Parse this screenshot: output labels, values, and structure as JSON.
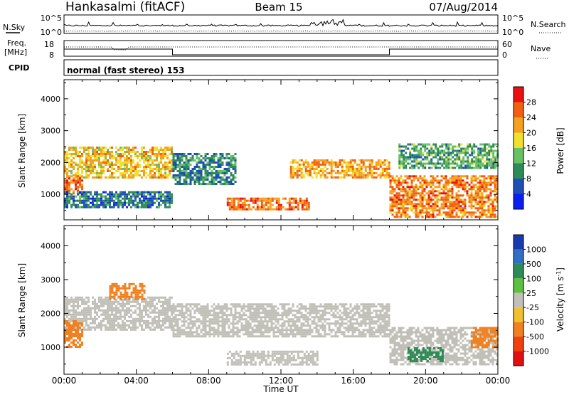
{
  "header": {
    "station": "Hankasalmi (fitACF)",
    "beam": "Beam 15",
    "date": "07/Aug/2014"
  },
  "top_panels": {
    "nsky_label": "N.Sky",
    "nsearch_label": "N.Search",
    "count_ticks": [
      "10^5",
      "10^0"
    ],
    "freq_label": "Freq.",
    "freq_unit": "[MHz]",
    "freq_ticks": [
      "18",
      "8"
    ],
    "nave_label": "Nave",
    "nave_ticks": [
      "60",
      "0"
    ],
    "cpid_label": "CPID",
    "cpid_text": "normal (fast stereo) 153"
  },
  "axes": {
    "x_ticks": [
      "00:00",
      "04:00",
      "08:00",
      "12:00",
      "16:00",
      "20:00",
      "00:00"
    ],
    "x_label": "Time UT",
    "y_ticks": [
      "1000",
      "2000",
      "3000",
      "4000"
    ],
    "y_label": "Slant Range [km]"
  },
  "power_colorbar": {
    "label": "Power [dB]",
    "ticks": [
      "4",
      "8",
      "12",
      "16",
      "20",
      "24",
      "28"
    ],
    "colors": [
      "#0a1ef0",
      "#1e4fb4",
      "#2e8b57",
      "#67c167",
      "#f0e030",
      "#f4a020",
      "#f06010",
      "#e81010"
    ]
  },
  "velocity_colorbar": {
    "label": "Velocity [m s",
    "label_sup": "-1",
    "label_end": "]",
    "ticks": [
      "1000",
      "500",
      "100",
      "25",
      "-25",
      "-100",
      "-500",
      "-1000"
    ],
    "colors": [
      "#1a3ab0",
      "#3070c0",
      "#2e8b57",
      "#5cc040",
      "#c0c0b8",
      "#f0c030",
      "#f08020",
      "#f04010",
      "#e01010"
    ]
  },
  "chart_data": [
    {
      "type": "heatmap",
      "title": "",
      "xlabel": "",
      "ylabel": "Slant Range [km]",
      "x_range_hours": [
        0,
        24
      ],
      "ylim": [
        200,
        4600
      ],
      "colorbar": "Power [dB]",
      "bands": [
        {
          "t0": 0.0,
          "t1": 6.0,
          "r0": 1500,
          "r1": 2500,
          "level": 20
        },
        {
          "t0": 0.0,
          "t1": 1.0,
          "r0": 1000,
          "r1": 1600,
          "level": 26
        },
        {
          "t0": 0.0,
          "t1": 6.0,
          "r0": 600,
          "r1": 1100,
          "level": 8
        },
        {
          "t0": 6.0,
          "t1": 9.5,
          "r0": 1300,
          "r1": 2300,
          "level": 10
        },
        {
          "t0": 9.0,
          "t1": 13.5,
          "r0": 500,
          "r1": 900,
          "level": 25
        },
        {
          "t0": 12.5,
          "t1": 18.0,
          "r0": 1500,
          "r1": 2100,
          "level": 22
        },
        {
          "t0": 18.0,
          "t1": 24.0,
          "r0": 300,
          "r1": 1600,
          "level": 24
        },
        {
          "t0": 18.5,
          "t1": 24.0,
          "r0": 1800,
          "r1": 2600,
          "level": 12
        }
      ]
    },
    {
      "type": "heatmap",
      "title": "",
      "xlabel": "Time UT",
      "ylabel": "Slant Range [km]",
      "x_range_hours": [
        0,
        24
      ],
      "ylim": [
        200,
        4600
      ],
      "colorbar": "Velocity [m s-1]",
      "bands": [
        {
          "t0": 0.0,
          "t1": 6.0,
          "r0": 1500,
          "r1": 2500,
          "level": 0
        },
        {
          "t0": 0.0,
          "t1": 1.0,
          "r0": 1000,
          "r1": 1800,
          "level": -300
        },
        {
          "t0": 2.5,
          "t1": 4.5,
          "r0": 2400,
          "r1": 2900,
          "level": -200
        },
        {
          "t0": 6.0,
          "t1": 18.0,
          "r0": 1300,
          "r1": 2300,
          "level": 0
        },
        {
          "t0": 9.0,
          "t1": 14.0,
          "r0": 500,
          "r1": 900,
          "level": 0
        },
        {
          "t0": 18.0,
          "t1": 24.0,
          "r0": 500,
          "r1": 1600,
          "level": 0
        },
        {
          "t0": 19.0,
          "t1": 21.0,
          "r0": 600,
          "r1": 1000,
          "level": 200
        },
        {
          "t0": 22.5,
          "t1": 24.0,
          "r0": 1000,
          "r1": 1600,
          "level": -400
        }
      ]
    }
  ]
}
